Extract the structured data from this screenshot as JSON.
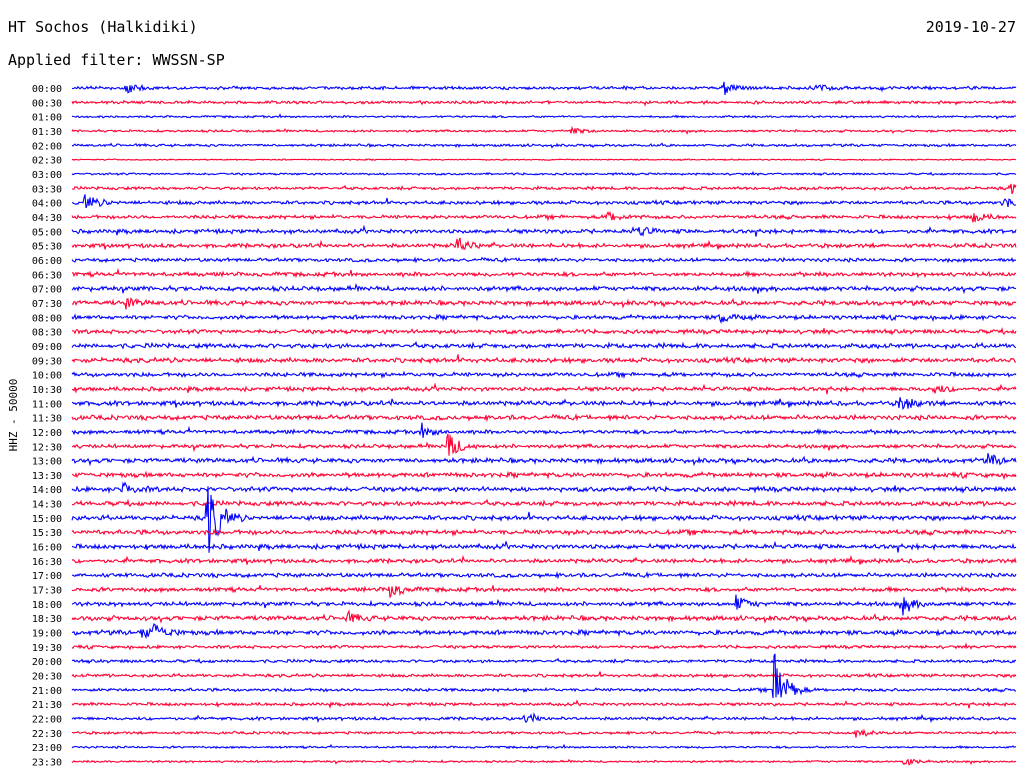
{
  "header": {
    "title": "HT Sochos (Halkidiki)",
    "date": "2019-10-27",
    "filter": "Applied filter: WWSSN-SP"
  },
  "station_label": "HHZ - 50000",
  "colors": {
    "blue": "#0000ff",
    "red": "#ff0033"
  },
  "chart_data": {
    "type": "line",
    "title": "HT Sochos (Halkidiki)",
    "subtitle": "Applied filter: WWSSN-SP",
    "ylabel": "HHZ - 50000",
    "xlim": [
      0,
      30
    ],
    "x_unit": "minutes within each 30-min trace",
    "categories": [
      "00:00",
      "00:30",
      "01:00",
      "01:30",
      "02:00",
      "02:30",
      "03:00",
      "03:30",
      "04:00",
      "04:30",
      "05:00",
      "05:30",
      "06:00",
      "06:30",
      "07:00",
      "07:30",
      "08:00",
      "08:30",
      "09:00",
      "09:30",
      "10:00",
      "10:30",
      "11:00",
      "11:30",
      "12:00",
      "12:30",
      "13:00",
      "13:30",
      "14:00",
      "14:30",
      "15:00",
      "15:30",
      "16:00",
      "16:30",
      "17:00",
      "17:30",
      "18:00",
      "18:30",
      "19:00",
      "19:30",
      "20:00",
      "20:30",
      "21:00",
      "21:30",
      "22:00",
      "22:30",
      "23:00",
      "23:30"
    ],
    "trace_colors": [
      "blue",
      "red"
    ],
    "noise_levels": [
      1.2,
      1.1,
      0.8,
      0.9,
      1.0,
      0.5,
      0.8,
      1.2,
      1.4,
      1.4,
      1.6,
      1.6,
      1.4,
      1.6,
      1.8,
      1.8,
      1.6,
      1.6,
      1.8,
      1.8,
      1.6,
      1.6,
      1.8,
      1.8,
      1.5,
      1.5,
      1.8,
      1.8,
      1.8,
      1.8,
      1.8,
      1.8,
      1.8,
      1.6,
      1.6,
      1.6,
      1.6,
      1.8,
      1.8,
      1.2,
      1.2,
      1.2,
      1.2,
      1.2,
      1.2,
      1.0,
      0.8,
      0.8
    ],
    "events": [
      {
        "trace": 0,
        "minute": 1.7,
        "amp": 6
      },
      {
        "trace": 0,
        "minute": 20.7,
        "amp": 7
      },
      {
        "trace": 0,
        "minute": 23.5,
        "amp": 5
      },
      {
        "trace": 3,
        "minute": 15.8,
        "amp": 4
      },
      {
        "trace": 7,
        "minute": 29.8,
        "amp": 6
      },
      {
        "trace": 8,
        "minute": 0.4,
        "amp": 9
      },
      {
        "trace": 8,
        "minute": 29.6,
        "amp": 5
      },
      {
        "trace": 9,
        "minute": 17,
        "amp": 6
      },
      {
        "trace": 9,
        "minute": 28.6,
        "amp": 6
      },
      {
        "trace": 10,
        "minute": 17.9,
        "amp": 7
      },
      {
        "trace": 11,
        "minute": 12.2,
        "amp": 9
      },
      {
        "trace": 15,
        "minute": 1.7,
        "amp": 5
      },
      {
        "trace": 16,
        "minute": 20.6,
        "amp": 6
      },
      {
        "trace": 21,
        "minute": 27.4,
        "amp": 5
      },
      {
        "trace": 22,
        "minute": 26.3,
        "amp": 9
      },
      {
        "trace": 24,
        "minute": 11.1,
        "amp": 6
      },
      {
        "trace": 25,
        "minute": 11.9,
        "amp": 15
      },
      {
        "trace": 26,
        "minute": 29.1,
        "amp": 6
      },
      {
        "trace": 28,
        "minute": 1.6,
        "amp": 7
      },
      {
        "trace": 30,
        "minute": 4.3,
        "amp": 45
      },
      {
        "trace": 35,
        "minute": 10.1,
        "amp": 8
      },
      {
        "trace": 36,
        "minute": 21.1,
        "amp": 8
      },
      {
        "trace": 36,
        "minute": 26.4,
        "amp": 10
      },
      {
        "trace": 37,
        "minute": 8.7,
        "amp": 6
      },
      {
        "trace": 38,
        "minute": 2.6,
        "amp": 8
      },
      {
        "trace": 38,
        "minute": 2.2,
        "amp": 6
      },
      {
        "trace": 42,
        "minute": 22.3,
        "amp": 40
      },
      {
        "trace": 44,
        "minute": 14.4,
        "amp": 5
      },
      {
        "trace": 45,
        "minute": 24.9,
        "amp": 5
      },
      {
        "trace": 47,
        "minute": 26.4,
        "amp": 5
      }
    ]
  }
}
